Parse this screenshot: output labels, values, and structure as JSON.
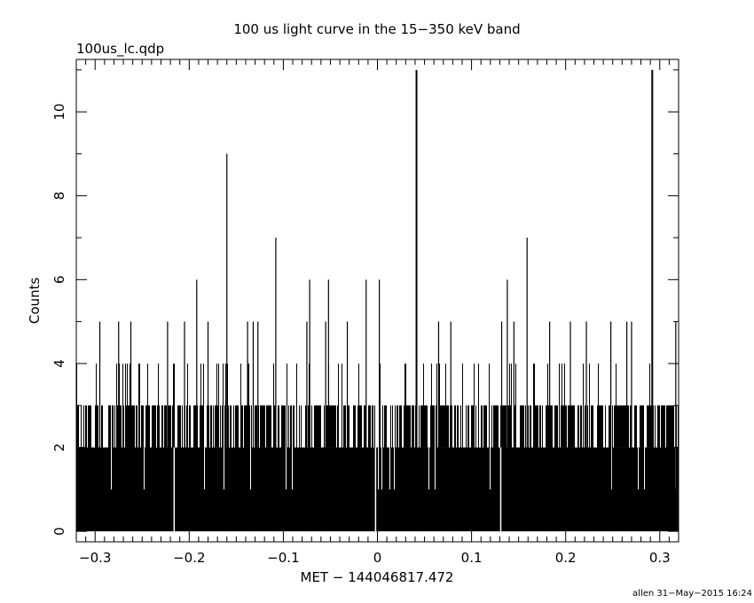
{
  "chart_data": {
    "type": "bar",
    "title": "100 us light curve in the 15−350 keV band",
    "subtitle": "100us_lc.qdp",
    "xlabel": "MET − 144046817.472",
    "ylabel": "Counts",
    "footer": "allen 31−May−2015 16:24",
    "xlim": [
      -0.32,
      0.32
    ],
    "ylim": [
      -0.25,
      11.25
    ],
    "bin_width": 0.0001,
    "x_ticks": [
      -0.3,
      -0.2,
      -0.1,
      0,
      0.1,
      0.2,
      0.3
    ],
    "x_tick_labels": [
      "−0.3",
      "−0.2",
      "−0.1",
      "0",
      "0.1",
      "0.2",
      "0.3"
    ],
    "y_ticks": [
      0,
      2,
      4,
      6,
      8,
      10
    ],
    "y_tick_labels": [
      "0",
      "2",
      "4",
      "6",
      "8",
      "10"
    ],
    "baseline_counts": 2,
    "spikes": [
      {
        "x": 0.0415,
        "y": 11
      },
      {
        "x": 0.292,
        "y": 11
      },
      {
        "x": -0.16,
        "y": 9
      },
      {
        "x": -0.108,
        "y": 7
      },
      {
        "x": 0.159,
        "y": 7
      },
      {
        "x": -0.192,
        "y": 6
      },
      {
        "x": -0.072,
        "y": 6
      },
      {
        "x": -0.052,
        "y": 6
      },
      {
        "x": -0.012,
        "y": 6
      },
      {
        "x": 0.002,
        "y": 6
      },
      {
        "x": 0.138,
        "y": 6
      },
      {
        "x": -0.295,
        "y": 5
      },
      {
        "x": -0.275,
        "y": 5
      },
      {
        "x": -0.262,
        "y": 5
      },
      {
        "x": -0.223,
        "y": 5
      },
      {
        "x": -0.205,
        "y": 5
      },
      {
        "x": -0.18,
        "y": 5
      },
      {
        "x": -0.138,
        "y": 5
      },
      {
        "x": -0.132,
        "y": 5
      },
      {
        "x": -0.127,
        "y": 5
      },
      {
        "x": -0.075,
        "y": 5
      },
      {
        "x": -0.055,
        "y": 5
      },
      {
        "x": -0.032,
        "y": 5
      },
      {
        "x": 0.065,
        "y": 5
      },
      {
        "x": 0.078,
        "y": 5
      },
      {
        "x": 0.132,
        "y": 5
      },
      {
        "x": 0.145,
        "y": 5
      },
      {
        "x": 0.183,
        "y": 5
      },
      {
        "x": 0.205,
        "y": 5
      },
      {
        "x": 0.222,
        "y": 5
      },
      {
        "x": 0.248,
        "y": 5
      },
      {
        "x": 0.265,
        "y": 5
      },
      {
        "x": 0.27,
        "y": 5
      },
      {
        "x": 0.317,
        "y": 5
      }
    ],
    "dips": [
      {
        "x": -0.216,
        "y": 0
      },
      {
        "x": -0.002,
        "y": 0
      },
      {
        "x": 0.131,
        "y": 0
      }
    ]
  }
}
